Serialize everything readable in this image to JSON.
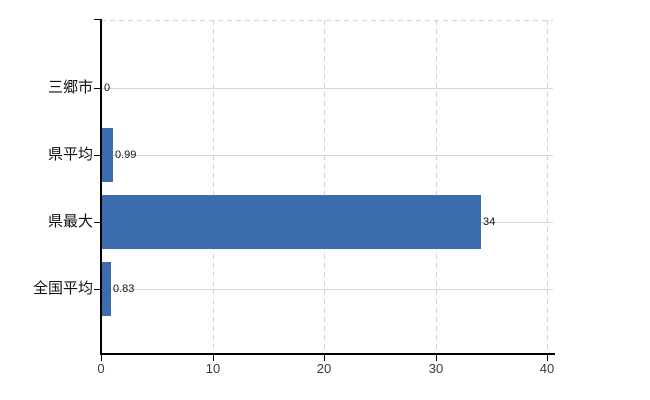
{
  "chart_data": {
    "type": "bar",
    "orientation": "horizontal",
    "title": "",
    "categories": [
      "三郷市",
      "県平均",
      "県最大",
      "全国平均"
    ],
    "values": [
      0,
      0.99,
      34,
      0.83
    ],
    "value_labels": [
      "0",
      "0.99",
      "34",
      "0.83"
    ],
    "x_tick_labels": [
      "0",
      "10",
      "20",
      "30",
      "40"
    ],
    "x_tick_values": [
      0,
      10,
      20,
      30,
      40
    ],
    "xlim": [
      0,
      40.5
    ],
    "ylabel": "",
    "xlabel": "",
    "grid": true,
    "legend_visible": false,
    "colors": {
      "bar": "#3b6cae",
      "axis": "#000000",
      "horizontal_gridline": "#d6d8d1",
      "vertical_gridline": "#d2d3cf",
      "tick_label": "#3a3a3a",
      "category_label": "#111111",
      "value_label": "#111111",
      "background": "#ffffff"
    }
  }
}
